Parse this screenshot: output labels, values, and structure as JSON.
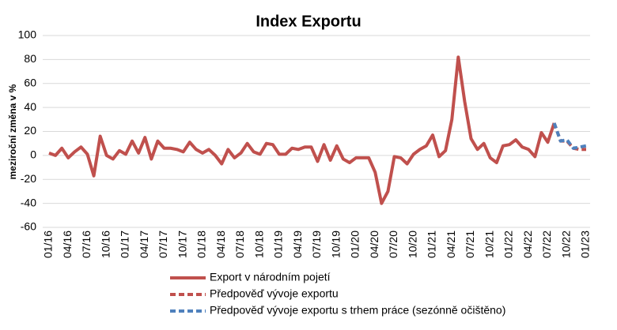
{
  "chart_data": {
    "type": "line",
    "title": "Index Exportu",
    "y_label": "meziroční změna v %",
    "categories": [
      "01/16",
      null,
      null,
      "04/16",
      null,
      null,
      "07/16",
      null,
      null,
      "10/16",
      null,
      null,
      "01/17",
      null,
      null,
      "04/17",
      null,
      null,
      "07/17",
      null,
      null,
      "10/17",
      null,
      null,
      "01/18",
      null,
      null,
      "04/18",
      null,
      null,
      "07/18",
      null,
      null,
      "10/18",
      null,
      null,
      "01/19",
      null,
      null,
      "04/19",
      null,
      null,
      "07/19",
      null,
      null,
      "10/19",
      null,
      null,
      "01/20",
      null,
      null,
      "04/20",
      null,
      null,
      "07/20",
      null,
      null,
      "10/20",
      null,
      null,
      "01/21",
      null,
      null,
      "04/21",
      null,
      null,
      "07/21",
      null,
      null,
      "10/21",
      null,
      null,
      "01/22",
      null,
      null,
      "04/22",
      null,
      null,
      "07/22",
      null,
      null,
      "10/22",
      null,
      null,
      "01/23"
    ],
    "series": [
      {
        "name": "Export v národním pojetí",
        "color": "#c0504d",
        "dash": false,
        "values": [
          2,
          0,
          6,
          -2,
          3,
          7,
          1,
          -17,
          16,
          0,
          -3,
          4,
          1,
          12,
          2,
          15,
          -3,
          12,
          6,
          6,
          5,
          3,
          11,
          5,
          2,
          5,
          0,
          -7,
          5,
          -2,
          2,
          10,
          3,
          1,
          10,
          9,
          1,
          1,
          6,
          5,
          7,
          7,
          -5,
          9,
          -4,
          8,
          -3,
          -6,
          -2,
          -2,
          -2,
          -14,
          -40,
          -30,
          -1,
          -2,
          -7,
          1,
          5,
          8,
          17,
          -1,
          4,
          30,
          82,
          45,
          14,
          5,
          10,
          -2,
          -6,
          8,
          9,
          13,
          7,
          5,
          -1,
          19,
          11,
          27,
          null,
          null,
          null,
          null,
          null
        ]
      },
      {
        "name": "Předpověď vývoje exportu",
        "color": "#c0504d",
        "dash": true,
        "values": [
          null,
          null,
          null,
          null,
          null,
          null,
          null,
          null,
          null,
          null,
          null,
          null,
          null,
          null,
          null,
          null,
          null,
          null,
          null,
          null,
          null,
          null,
          null,
          null,
          null,
          null,
          null,
          null,
          null,
          null,
          null,
          null,
          null,
          null,
          null,
          null,
          null,
          null,
          null,
          null,
          null,
          null,
          null,
          null,
          null,
          null,
          null,
          null,
          null,
          null,
          null,
          null,
          null,
          null,
          null,
          null,
          null,
          null,
          null,
          null,
          null,
          null,
          null,
          null,
          null,
          null,
          null,
          null,
          null,
          null,
          null,
          null,
          null,
          null,
          null,
          null,
          null,
          null,
          null,
          27,
          12,
          12,
          6,
          5,
          5
        ]
      },
      {
        "name": "Předpověď vývoje exportu s trhem práce (sezónně očištěno)",
        "color": "#4f81bd",
        "dash": true,
        "values": [
          null,
          null,
          null,
          null,
          null,
          null,
          null,
          null,
          null,
          null,
          null,
          null,
          null,
          null,
          null,
          null,
          null,
          null,
          null,
          null,
          null,
          null,
          null,
          null,
          null,
          null,
          null,
          null,
          null,
          null,
          null,
          null,
          null,
          null,
          null,
          null,
          null,
          null,
          null,
          null,
          null,
          null,
          null,
          null,
          null,
          null,
          null,
          null,
          null,
          null,
          null,
          null,
          null,
          null,
          null,
          null,
          null,
          null,
          null,
          null,
          null,
          null,
          null,
          null,
          null,
          null,
          null,
          null,
          null,
          null,
          null,
          null,
          null,
          null,
          null,
          null,
          null,
          null,
          null,
          27,
          12,
          13,
          6,
          7,
          8
        ]
      }
    ],
    "ylim": [
      -60,
      100
    ],
    "yticks": [
      -60,
      -40,
      -20,
      0,
      20,
      40,
      60,
      80,
      100
    ],
    "grid": true
  }
}
